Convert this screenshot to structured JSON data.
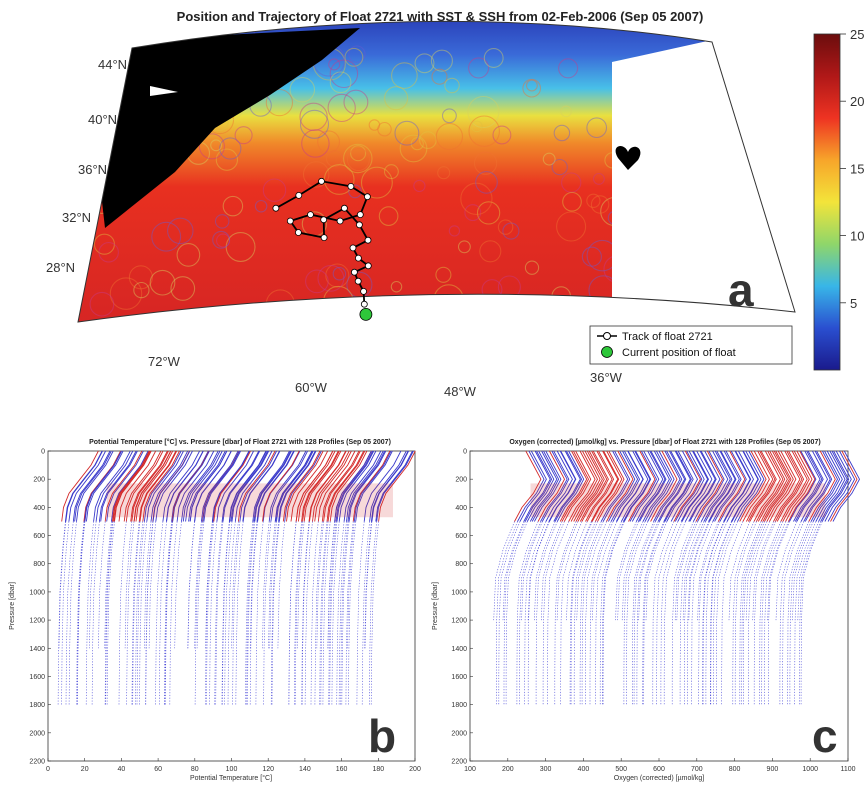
{
  "map": {
    "title": "Position and Trajectory of Float 2721 with SST & SSH from 02-Feb-2006 (Sep 05 2007)",
    "lat_labels": [
      "44°N",
      "40°N",
      "36°N",
      "32°N",
      "28°N"
    ],
    "lon_labels": [
      "72°W",
      "60°W",
      "48°W",
      "36°W"
    ],
    "panel_letter": "a",
    "legend": {
      "track_label": "Track of float 2721",
      "current_label": "Current position of float"
    },
    "colorbar": {
      "range": [
        0,
        25
      ],
      "ticks": [
        5,
        10,
        15,
        20,
        25
      ],
      "colors": [
        "#1a1a8c",
        "#2a4fd0",
        "#38b6e8",
        "#8fd66a",
        "#f3e43a",
        "#f7a52a",
        "#ee3322",
        "#b01818",
        "#6b0d0d"
      ]
    },
    "colors": {
      "land": "#000000",
      "track": "#000000",
      "marker": "#ffffff",
      "current": "#2ec73a"
    }
  },
  "temp": {
    "title": "Potential Temperature [°C] vs. Pressure [dbar] of Float 2721 with 128 Profiles (Sep 05 2007)",
    "xlabel": "Potential Temperature [°C]",
    "ylabel": "Pressure [dbar]",
    "panel_letter": "b",
    "xlim": [
      0,
      200
    ],
    "ylim": [
      0,
      2200
    ],
    "xticks": [
      0,
      20,
      40,
      60,
      80,
      100,
      120,
      140,
      160,
      180,
      200
    ],
    "yticks": [
      0,
      200,
      400,
      600,
      800,
      1000,
      1200,
      1400,
      1600,
      1800,
      2000,
      2200
    ],
    "profiles": 128
  },
  "oxygen": {
    "title": "Oxygen (corrected) [µmol/kg] vs. Pressure [dbar] of Float 2721 with 128 Profiles (Sep 05 2007)",
    "xlabel": "Oxygen (corrected) [µmol/kg]",
    "ylabel": "Pressure [dbar]",
    "panel_letter": "c",
    "xlim": [
      100,
      1100
    ],
    "ylim": [
      0,
      2200
    ],
    "xticks": [
      100,
      200,
      300,
      400,
      500,
      600,
      700,
      800,
      900,
      1000,
      1100
    ],
    "yticks": [
      0,
      200,
      400,
      600,
      800,
      1000,
      1200,
      1400,
      1600,
      1800,
      2000,
      2200
    ],
    "profiles": 128
  },
  "chart_data": [
    {
      "type": "scatter",
      "title": "Position and Trajectory of Float 2721 with SST & SSH from 02-Feb-2006 (Sep 05 2007)",
      "series": [
        {
          "name": "Track of float 2721",
          "values": [
            [
              -62.5,
              33.5
            ],
            [
              -60.5,
              34.5
            ],
            [
              -58.5,
              35.6
            ],
            [
              -56.2,
              35.2
            ],
            [
              -55.0,
              34.4
            ],
            [
              -55.8,
              33.0
            ],
            [
              -57.5,
              32.5
            ],
            [
              -59.8,
              33.0
            ],
            [
              -61.5,
              32.5
            ],
            [
              -61.0,
              31.6
            ],
            [
              -59.0,
              31.2
            ],
            [
              -58.8,
              32.6
            ],
            [
              -57.0,
              33.5
            ],
            [
              -56.0,
              32.2
            ],
            [
              -55.5,
              31.0
            ],
            [
              -56.8,
              30.4
            ],
            [
              -56.5,
              29.6
            ],
            [
              -55.8,
              29.0
            ],
            [
              -57.0,
              28.5
            ],
            [
              -56.8,
              27.8
            ],
            [
              -56.5,
              27.0
            ],
            [
              -56.6,
              26.0
            ]
          ]
        },
        {
          "name": "Current position of float",
          "values": [
            [
              -56.6,
              25.2
            ]
          ]
        }
      ],
      "color_scale": {
        "range": [
          0,
          25
        ],
        "ticks": [
          5,
          10,
          15,
          20,
          25
        ]
      }
    },
    {
      "type": "line",
      "title": "Potential Temperature [°C] vs. Pressure [dbar] of Float 2721 with 128 Profiles (Sep 05 2007)",
      "xlabel": "Potential Temperature [°C]",
      "ylabel": "Pressure [dbar]",
      "xlim": [
        0,
        200
      ],
      "ylim": [
        2200,
        0
      ],
      "profiles": 128,
      "x_offset_range": [
        5,
        175
      ],
      "typical_profile": {
        "pressure": [
          0,
          100,
          200,
          300,
          400,
          500,
          700,
          1000,
          1400,
          1800
        ],
        "delta_x": [
          24,
          20,
          14,
          8,
          5,
          4,
          2.5,
          1,
          0.3,
          0
        ]
      }
    },
    {
      "type": "line",
      "title": "Oxygen (corrected) [µmol/kg] vs. Pressure [dbar] of Float 2721 with 128 Profiles (Sep 05 2007)",
      "xlabel": "Oxygen (corrected) [µmol/kg]",
      "ylabel": "Pressure [dbar]",
      "xlim": [
        100,
        1100
      ],
      "ylim": [
        2200,
        0
      ],
      "profiles": 128,
      "x_offset_range": [
        210,
        1050
      ],
      "typical_profile": {
        "pressure": [
          0,
          100,
          200,
          300,
          400,
          500,
          700,
          900,
          1200,
          1600,
          1800
        ],
        "delta_x": [
          40,
          60,
          80,
          60,
          30,
          10,
          -20,
          -40,
          -45,
          -46,
          -46
        ]
      }
    }
  ]
}
